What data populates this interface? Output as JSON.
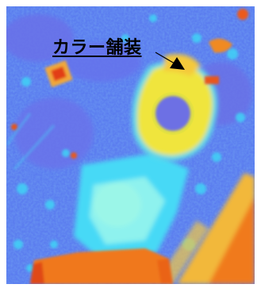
{
  "annotation": {
    "label": "カラー舗装"
  },
  "palette": {
    "background_blue": "#5a7cf0",
    "deep_blue": "#6677ee",
    "cyan": "#44dff8",
    "light_cyan": "#8cf4f0",
    "yellow": "#f2e83a",
    "orange": "#f07a1c",
    "red": "#e03a10",
    "frame": "#ffffff",
    "label_color": "#000000"
  }
}
